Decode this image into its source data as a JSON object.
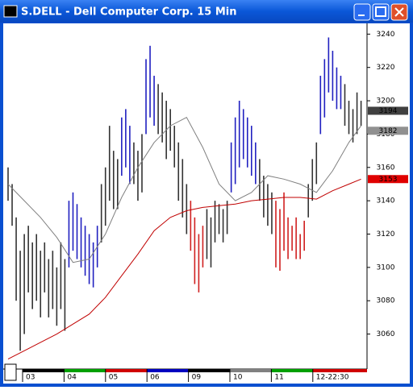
{
  "window": {
    "title": "S.DELL - Dell Computer Corp. 15 Min"
  },
  "chart_data": {
    "type": "ohlc",
    "ylim": [
      3039,
      3245
    ],
    "yticks": [
      3060,
      3080,
      3100,
      3120,
      3140,
      3160,
      3180,
      3200,
      3220,
      3240
    ],
    "categories": [
      "03",
      "04",
      "05",
      "06",
      "09",
      "10",
      "11",
      "12-22:30"
    ],
    "category_colors": [
      "#000000",
      "#00a000",
      "#d00000",
      "#0000c0",
      "#000000",
      "#808080",
      "#00a000",
      "#d00000"
    ],
    "segments": [
      {
        "color": "#333333",
        "high": [
          3160,
          3150,
          3130,
          3110,
          3120,
          3125,
          3115,
          3120,
          3110,
          3115,
          3105,
          3110,
          3100,
          3115,
          3105
        ],
        "low": [
          3140,
          3125,
          3080,
          3050,
          3060,
          3085,
          3075,
          3080,
          3070,
          3085,
          3070,
          3075,
          3065,
          3075,
          3062
        ]
      },
      {
        "color": "#2020c0",
        "high": [
          3140,
          3145,
          3138,
          3130,
          3125,
          3120,
          3115,
          3125
        ],
        "low": [
          3100,
          3110,
          3105,
          3100,
          3095,
          3090,
          3088,
          3100
        ]
      },
      {
        "color": "#333333",
        "high": [
          3150,
          3160,
          3185,
          3170,
          3165
        ],
        "low": [
          3115,
          3125,
          3140,
          3135,
          3135
        ]
      },
      {
        "color": "#2020c0",
        "high": [
          3190,
          3195,
          3185
        ],
        "low": [
          3155,
          3160,
          3150
        ]
      },
      {
        "color": "#333333",
        "high": [
          3175,
          3170,
          3180
        ],
        "low": [
          3150,
          3140,
          3145
        ]
      },
      {
        "color": "#2020c0",
        "high": [
          3225,
          3233,
          3215
        ],
        "low": [
          3180,
          3190,
          3185
        ]
      },
      {
        "color": "#333333",
        "high": [
          3210,
          3205,
          3200,
          3195,
          3185,
          3175,
          3165,
          3150
        ],
        "low": [
          3180,
          3175,
          3165,
          3170,
          3160,
          3140,
          3130,
          3120
        ]
      },
      {
        "color": "#d02020",
        "high": [
          3140,
          3130,
          3120,
          3125
        ],
        "low": [
          3110,
          3090,
          3085,
          3100
        ]
      },
      {
        "color": "#333333",
        "high": [
          3135,
          3130,
          3140,
          3138,
          3135,
          3140
        ],
        "low": [
          3105,
          3100,
          3115,
          3120,
          3115,
          3120
        ]
      },
      {
        "color": "#2020c0",
        "high": [
          3175,
          3190,
          3200,
          3195,
          3190,
          3185,
          3175
        ],
        "low": [
          3145,
          3150,
          3160,
          3165,
          3160,
          3155,
          3150
        ]
      },
      {
        "color": "#333333",
        "high": [
          3165,
          3155,
          3150,
          3145
        ],
        "low": [
          3140,
          3130,
          3125,
          3120
        ]
      },
      {
        "color": "#d02020",
        "high": [
          3140,
          3135,
          3145,
          3130,
          3125,
          3130,
          3120,
          3128
        ],
        "low": [
          3100,
          3098,
          3110,
          3105,
          3110,
          3105,
          3105,
          3110
        ]
      },
      {
        "color": "#333333",
        "high": [
          3150,
          3165,
          3175
        ],
        "low": [
          3130,
          3140,
          3150
        ]
      },
      {
        "color": "#2020c0",
        "high": [
          3215,
          3225,
          3238,
          3230,
          3220,
          3215
        ],
        "low": [
          3180,
          3190,
          3205,
          3200,
          3195,
          3195
        ]
      },
      {
        "color": "#333333",
        "high": [
          3210,
          3200,
          3195,
          3205,
          3200
        ],
        "low": [
          3185,
          3180,
          3175,
          3180,
          3185
        ]
      }
    ],
    "lines": [
      {
        "color": "#808080",
        "x": [
          0,
          4,
          8,
          12,
          16,
          20,
          24,
          28,
          32,
          36,
          40,
          44,
          48,
          52,
          56,
          60,
          64,
          68,
          72,
          76,
          80,
          84,
          87
        ],
        "values": [
          3150,
          3140,
          3130,
          3118,
          3103,
          3105,
          3120,
          3142,
          3160,
          3175,
          3185,
          3190,
          3172,
          3150,
          3140,
          3145,
          3155,
          3153,
          3150,
          3145,
          3158,
          3175,
          3185
        ]
      },
      {
        "color": "#c00000",
        "x": [
          0,
          4,
          8,
          12,
          16,
          20,
          24,
          28,
          32,
          36,
          40,
          44,
          48,
          52,
          56,
          60,
          64,
          68,
          72,
          76,
          80,
          84,
          87
        ],
        "values": [
          3045,
          3050,
          3055,
          3060,
          3066,
          3072,
          3082,
          3095,
          3108,
          3122,
          3130,
          3134,
          3136,
          3137,
          3138,
          3140,
          3141,
          3142,
          3142,
          3141,
          3146,
          3150,
          3153
        ]
      }
    ],
    "price_labels": [
      {
        "value": 3194,
        "color": "#404040"
      },
      {
        "value": 3182,
        "color": "#909090"
      },
      {
        "value": 3153,
        "color": "#e00000"
      }
    ]
  }
}
